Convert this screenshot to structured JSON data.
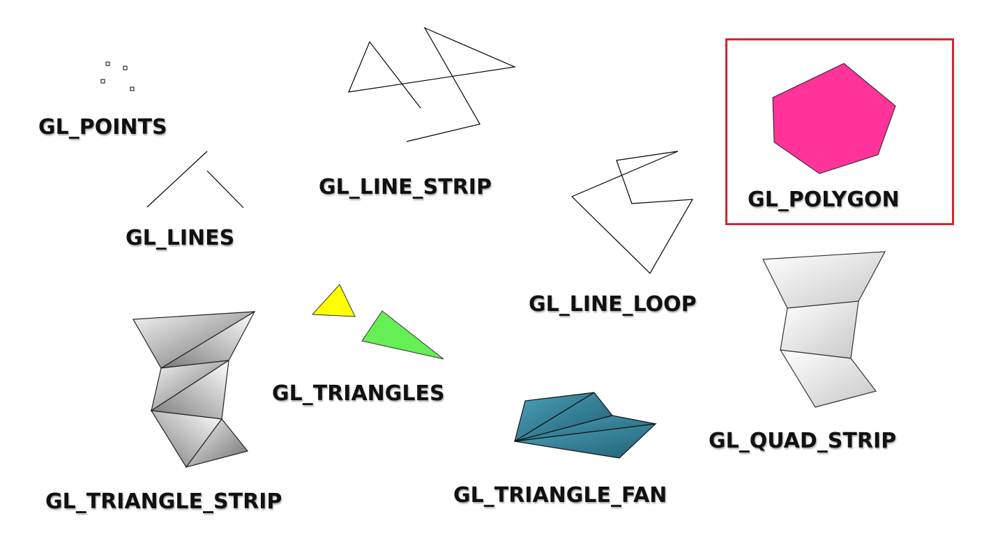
{
  "labels": {
    "points": "GL_POINTS",
    "lines": "GL_LINES",
    "line_strip": "GL_LINE_STRIP",
    "line_loop": "GL_LINE_LOOP",
    "polygon": "GL_POLYGON",
    "triangles": "GL_TRIANGLES",
    "triangle_strip": "GL_TRIANGLE_STRIP",
    "triangle_fan": "GL_TRIANGLE_FAN",
    "quad_strip": "GL_QUAD_STRIP"
  },
  "colors": {
    "polygon_fill": "#ff3399",
    "highlight_border": "#d22630",
    "triangle_yellow": "#ffff00",
    "triangle_green": "#66ee55",
    "fan_fill": "#2e7f96",
    "strip_gray": "#9a9a9a",
    "quad_gray": "#e0e0e0"
  },
  "highlighted_primitive": "GL_POLYGON"
}
